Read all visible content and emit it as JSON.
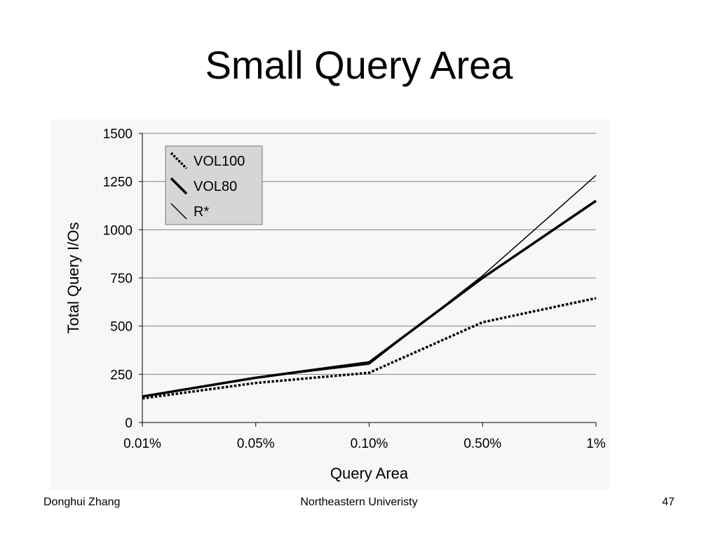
{
  "slide": {
    "title": "Small Query Area",
    "footer_left": "Donghui Zhang",
    "footer_center": "Northeastern Univeristy",
    "footer_right": "47"
  },
  "chart_data": {
    "type": "line",
    "categories": [
      "0.01%",
      "0.05%",
      "0.10%",
      "0.50%",
      "1%"
    ],
    "series": [
      {
        "name": "VOL100",
        "values": [
          125,
          205,
          258,
          520,
          645
        ],
        "style": "dotted"
      },
      {
        "name": "VOL80",
        "values": [
          135,
          232,
          312,
          750,
          1150
        ],
        "style": "thick"
      },
      {
        "name": "R*",
        "values": [
          138,
          232,
          302,
          762,
          1282
        ],
        "style": "thin"
      }
    ],
    "xlabel": "Query Area",
    "ylabel": "Total Query I/Os",
    "ylim": [
      0,
      1500
    ],
    "yticks": [
      "0",
      "250",
      "500",
      "750",
      "1000",
      "1250",
      "1500"
    ],
    "grid": true,
    "legend_position": "top-left",
    "colors": {
      "plot_bg": "#f7f7f7",
      "legend_bg": "#d6d6d6",
      "line": "#000000",
      "grid": "#808080"
    }
  }
}
